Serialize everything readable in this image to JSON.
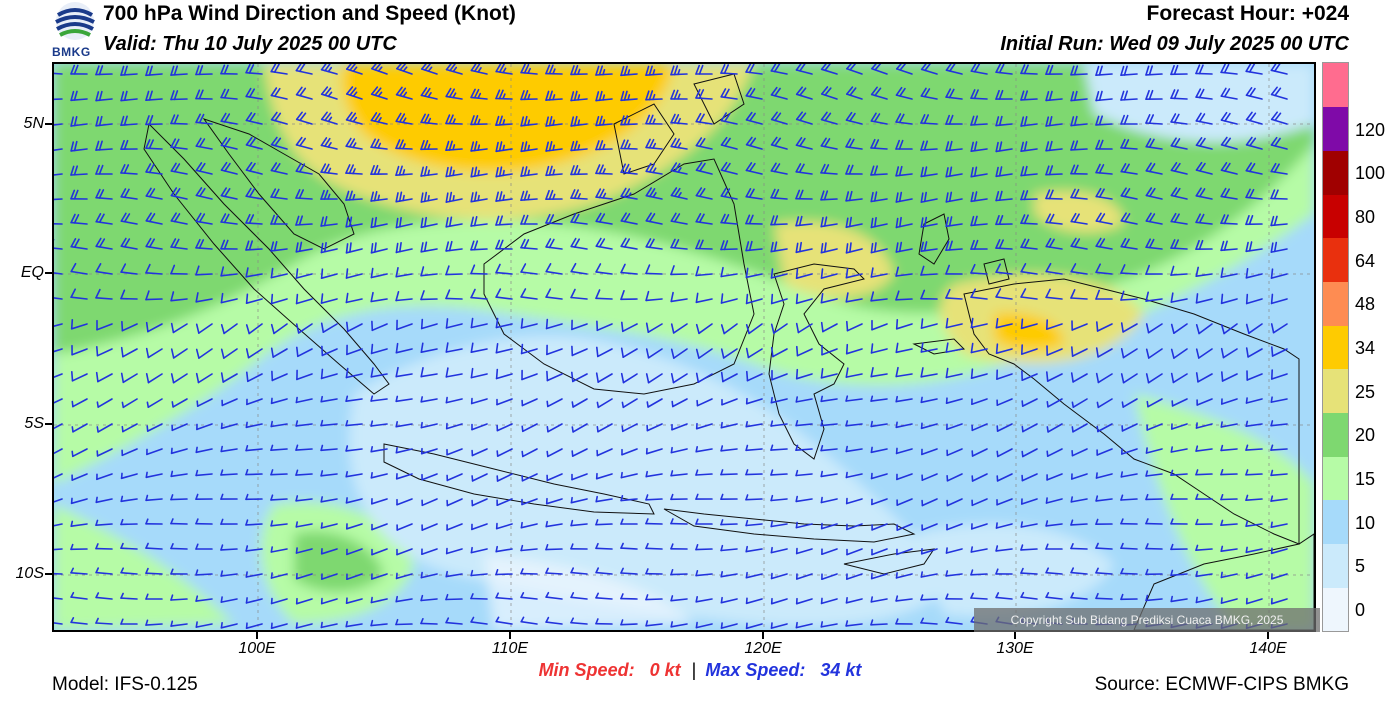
{
  "header": {
    "logo_text": "BMKG",
    "title": "700 hPa Wind Direction and Speed (Knot)",
    "valid": "Valid: Thu 10 July 2025 00 UTC",
    "forecast_hour": "Forecast Hour: +024",
    "initial_run": "Initial Run: Wed 09 July 2025 00 UTC"
  },
  "map": {
    "lat_labels": [
      "5N",
      "EQ",
      "5S",
      "10S"
    ],
    "lon_labels": [
      "100E",
      "110E",
      "120E",
      "130E",
      "140E"
    ],
    "lat_values": [
      5,
      0,
      -5,
      -10
    ],
    "lon_values": [
      100,
      110,
      120,
      130,
      140
    ],
    "lon_range": [
      92,
      142
    ],
    "lat_range": [
      -12,
      7
    ],
    "copyright": "Copyright Sub Bidang Prediksi Cuaca BMKG, 2025",
    "barb_color": "#2233dd"
  },
  "colorbar": {
    "labels": [
      "0",
      "5",
      "10",
      "15",
      "20",
      "25",
      "34",
      "48",
      "64",
      "80",
      "100",
      "120"
    ],
    "colors": [
      "#eef6fd",
      "#cbeafb",
      "#a6dafa",
      "#b6fba6",
      "#7ed870",
      "#e6e278",
      "#fecb01",
      "#fe8c52",
      "#e9300e",
      "#c80000",
      "#a00000",
      "#7f0aa8",
      "#ff6c8f"
    ]
  },
  "footer": {
    "min_label": "Min Speed:",
    "min_value": "0 kt",
    "separator": "|",
    "max_label": "Max Speed:",
    "max_value": "34 kt",
    "model": "Model: IFS-0.125",
    "source": "Source: ECMWF-CIPS BMKG",
    "min_color": "#ee3333",
    "max_color": "#2233dd"
  }
}
